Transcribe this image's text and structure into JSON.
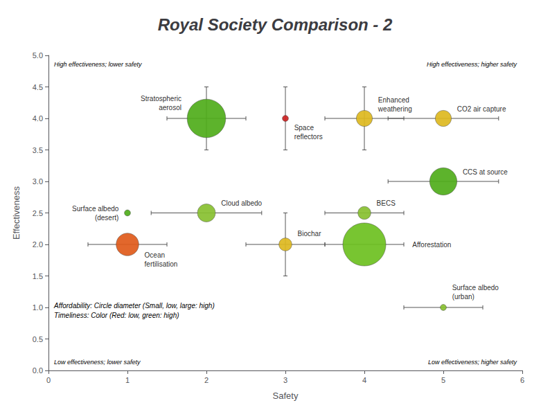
{
  "chart_data": {
    "type": "scatter",
    "title": "Royal Society Comparison - 2",
    "xlabel": "Safety",
    "ylabel": "Effectiveness",
    "xlim": [
      0,
      6
    ],
    "ylim": [
      0,
      5
    ],
    "xticks": [
      0,
      1,
      2,
      3,
      4,
      5,
      6
    ],
    "yticks": [
      {
        "value": 0,
        "label": "0.0"
      },
      0.5,
      {
        "value": 1,
        "label": "1.0"
      },
      1.5,
      {
        "value": 2,
        "label": "2.0"
      },
      2.5,
      {
        "value": 3,
        "label": "3.0"
      },
      3.5,
      {
        "value": 4,
        "label": "4.0"
      },
      4.5,
      {
        "value": 5,
        "label": "5.0"
      }
    ],
    "grid": false,
    "points": [
      {
        "name": "Stratospheric\naerosol",
        "x": 2,
        "y": 4,
        "xerr": 0.5,
        "yerr": 0.5,
        "size": 1600,
        "color": "#4FAD1A"
      },
      {
        "name": "Space\nreflectors",
        "x": 3,
        "y": 4,
        "xerr": 0,
        "yerr": 0.5,
        "size": 40,
        "color": "#CC2222"
      },
      {
        "name": "Enhanced\nweathering",
        "x": 4,
        "y": 4,
        "xerr": 0.5,
        "yerr": 0.5,
        "size": 280,
        "color": "#DDB820"
      },
      {
        "name": "CO2 air capture",
        "x": 5,
        "y": 4,
        "xerr": 0.7,
        "yerr": 0,
        "size": 280,
        "color": "#DDB820"
      },
      {
        "name": "Surface albedo\n(desert)",
        "x": 1,
        "y": 2.5,
        "xerr": 0,
        "yerr": 0,
        "size": 40,
        "color": "#4FAD1A"
      },
      {
        "name": "Cloud albedo",
        "x": 2,
        "y": 2.5,
        "xerr": 0.7,
        "yerr": 0,
        "size": 350,
        "color": "#88C030"
      },
      {
        "name": "BECS",
        "x": 4,
        "y": 2.5,
        "xerr": 0.5,
        "yerr": 0,
        "size": 180,
        "color": "#88C030"
      },
      {
        "name": "CCS at source",
        "x": 5,
        "y": 3,
        "xerr": 0.7,
        "yerr": 0,
        "size": 800,
        "color": "#4FAD1A"
      },
      {
        "name": "Ocean\nfertilisation",
        "x": 1,
        "y": 2,
        "xerr": 0.5,
        "yerr": 0,
        "size": 550,
        "color": "#E05A1A"
      },
      {
        "name": "Biochar",
        "x": 3,
        "y": 2,
        "xerr": 0.5,
        "yerr": 0.5,
        "size": 180,
        "color": "#DDB820"
      },
      {
        "name": "Afforestation",
        "x": 4,
        "y": 2,
        "xerr": 0.5,
        "yerr": 0,
        "size": 2000,
        "color": "#6DC020"
      },
      {
        "name": "Surface albedo\n(urban)",
        "x": 5,
        "y": 1,
        "xerr": 0.5,
        "yerr": 0,
        "size": 40,
        "color": "#88C030"
      }
    ],
    "annotations": [
      "High effectiveness; lower safety",
      "High effectiveness; higher safety",
      "Low effectiveness; lower safety",
      "Low effectiveness; higher safety",
      "Affordability: Circle diameter (Small, low, large: high)\nTimeliness: Color (Red: low, green: high)"
    ]
  }
}
